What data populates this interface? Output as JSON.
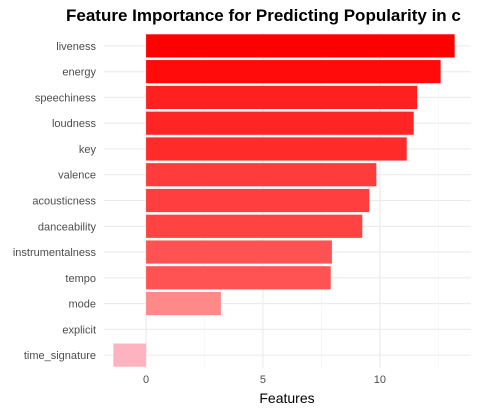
{
  "chart_data": {
    "type": "bar",
    "orientation": "horizontal",
    "title": "Feature Importance for Predicting Popularity in c",
    "xlabel": "Features",
    "ylabel": "",
    "xlim": [
      -1.8,
      13.9
    ],
    "xticks": [
      0,
      5,
      10
    ],
    "grid": true,
    "legend": "none",
    "categories": [
      "liveness",
      "energy",
      "speechiness",
      "loudness",
      "key",
      "valence",
      "acousticness",
      "danceability",
      "instrumentalness",
      "tempo",
      "mode",
      "explicit",
      "time_signature"
    ],
    "values": [
      13.2,
      12.6,
      11.6,
      11.45,
      11.15,
      9.85,
      9.55,
      9.25,
      7.95,
      7.9,
      3.2,
      0,
      -1.4
    ],
    "colors": [
      "#ff0000",
      "#ff0b0b",
      "#ff2020",
      "#ff2525",
      "#ff2a2a",
      "#ff3c3c",
      "#ff3f3f",
      "#ff4242",
      "#ff5252",
      "#ff5353",
      "#ff8888",
      "#ffaaaa",
      "#ffb3c0"
    ]
  }
}
